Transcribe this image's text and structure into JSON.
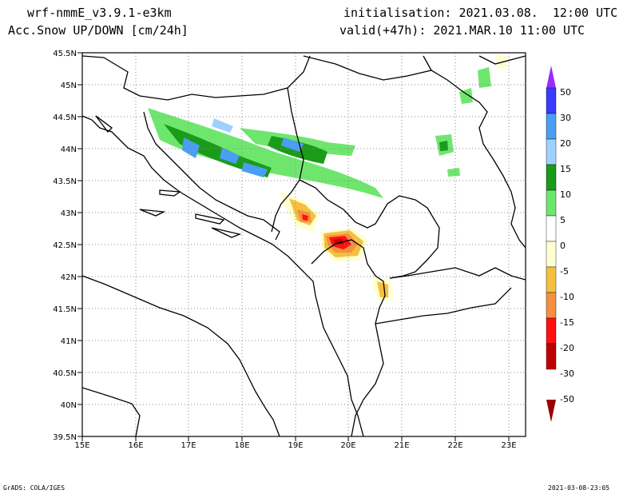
{
  "header": {
    "model": "wrf-nmmE_v3.9.1-e3km",
    "field": "n Acc.Snow UP/DOWN [cm/24h]",
    "init": "initialisation: 2021.03.08.  12:00 UTC",
    "valid": "valid(+47h): 2021.MAR.10 11:00 UTC"
  },
  "map": {
    "lon_labels": [
      "15E",
      "16E",
      "17E",
      "18E",
      "19E",
      "20E",
      "21E",
      "22E",
      "23E"
    ],
    "lat_labels": [
      "45.5N",
      "45N",
      "44.5N",
      "44N",
      "43.5N",
      "43N",
      "42.5N",
      "42N",
      "41.5N",
      "41N",
      "40.5N",
      "40N",
      "39.5N"
    ],
    "lon_range": [
      15,
      23.3
    ],
    "lat_range": [
      39.5,
      45.5
    ],
    "grid": "dotted"
  },
  "colorbar": {
    "labels": [
      "50",
      "30",
      "20",
      "15",
      "10",
      "5",
      "0",
      "-5",
      "-10",
      "-15",
      "-20",
      "-30",
      "-50"
    ],
    "colors": [
      "#9a2bff",
      "#3b3bff",
      "#4a9ef5",
      "#9fd1ff",
      "#1a9b1a",
      "#6ee66e",
      "#ffffff",
      "#ffffd0",
      "#f5c040",
      "#f59040",
      "#ff1010",
      "#c00000",
      "#9a0000"
    ]
  },
  "footer": {
    "software": "GrADS: COLA/IGES",
    "timestamp": "2021-03-08-23:05"
  }
}
